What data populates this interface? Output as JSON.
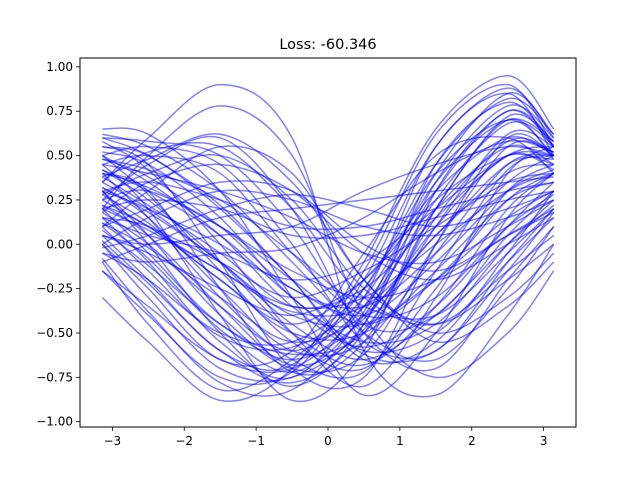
{
  "chart_data": {
    "type": "line",
    "title": "Loss: -60.346",
    "xlabel": "",
    "ylabel": "",
    "xlim": [
      -3.45,
      3.45
    ],
    "ylim": [
      -1.03,
      1.05
    ],
    "xticks": [
      -3,
      -2,
      -1,
      0,
      1,
      2,
      3
    ],
    "xtick_labels": [
      "−3",
      "−2",
      "−1",
      "0",
      "1",
      "2",
      "3"
    ],
    "yticks": [
      -1.0,
      -0.75,
      -0.5,
      -0.25,
      0.0,
      0.25,
      0.5,
      0.75,
      1.0
    ],
    "ytick_labels": [
      "−1.00",
      "−0.75",
      "−0.50",
      "−0.25",
      "0.00",
      "0.25",
      "0.50",
      "0.75",
      "1.00"
    ],
    "grid": false,
    "legend": "none",
    "line_color": "#0000ff",
    "line_opacity": 0.5,
    "x": [
      -3.14,
      -2.5,
      -1.5,
      -0.5,
      0.5,
      1.5,
      2.5,
      3.14
    ],
    "series": [
      {
        "values": [
          0.65,
          0.62,
          0.3,
          -0.3,
          -0.85,
          -0.5,
          0.15,
          0.4
        ]
      },
      {
        "values": [
          0.45,
          0.2,
          -0.4,
          -0.88,
          -0.6,
          0.3,
          0.75,
          0.58
        ]
      },
      {
        "values": [
          0.3,
          0.0,
          -0.5,
          -0.8,
          -0.45,
          0.45,
          0.8,
          0.55
        ]
      },
      {
        "values": [
          0.15,
          -0.1,
          -0.55,
          -0.75,
          -0.3,
          0.55,
          0.85,
          0.5
        ]
      },
      {
        "values": [
          0.55,
          0.45,
          -0.1,
          -0.7,
          -0.75,
          0.0,
          0.6,
          0.5
        ]
      },
      {
        "values": [
          0.4,
          0.3,
          -0.25,
          -0.72,
          -0.55,
          0.2,
          0.7,
          0.48
        ]
      },
      {
        "values": [
          0.05,
          -0.2,
          -0.6,
          -0.68,
          -0.15,
          0.62,
          0.9,
          0.55
        ]
      },
      {
        "values": [
          -0.3,
          -0.55,
          -0.88,
          -0.7,
          -0.1,
          0.65,
          0.95,
          0.65
        ]
      },
      {
        "values": [
          -0.15,
          -0.4,
          -0.75,
          -0.72,
          -0.2,
          0.55,
          0.88,
          0.6
        ]
      },
      {
        "values": [
          0.0,
          -0.25,
          -0.65,
          -0.6,
          -0.05,
          0.5,
          0.6,
          0.4
        ]
      },
      {
        "values": [
          0.35,
          0.6,
          0.9,
          0.6,
          -0.6,
          -0.85,
          -0.4,
          0.0
        ]
      },
      {
        "values": [
          0.2,
          0.5,
          0.78,
          0.5,
          -0.4,
          -0.75,
          -0.5,
          -0.15
        ]
      },
      {
        "values": [
          0.1,
          0.3,
          0.55,
          0.4,
          -0.2,
          -0.5,
          -0.3,
          -0.05
        ]
      },
      {
        "values": [
          0.25,
          0.45,
          0.6,
          0.2,
          -0.5,
          -0.7,
          -0.2,
          0.1
        ]
      },
      {
        "values": [
          0.5,
          0.55,
          0.45,
          0.0,
          -0.55,
          -0.6,
          -0.1,
          0.2
        ]
      },
      {
        "values": [
          0.6,
          0.58,
          0.5,
          0.1,
          -0.45,
          -0.4,
          0.05,
          0.3
        ]
      },
      {
        "values": [
          0.45,
          0.5,
          0.4,
          -0.05,
          -0.4,
          -0.3,
          0.1,
          0.28
        ]
      },
      {
        "values": [
          0.35,
          0.2,
          -0.1,
          -0.4,
          -0.45,
          -0.2,
          0.15,
          0.3
        ]
      },
      {
        "values": [
          0.25,
          0.1,
          -0.15,
          -0.35,
          -0.3,
          0.0,
          0.3,
          0.4
        ]
      },
      {
        "values": [
          0.15,
          0.05,
          -0.05,
          -0.2,
          -0.1,
          0.2,
          0.5,
          0.5
        ]
      },
      {
        "values": [
          0.05,
          0.0,
          0.05,
          0.1,
          0.3,
          0.45,
          0.55,
          0.5
        ]
      },
      {
        "values": [
          -0.05,
          -0.1,
          -0.05,
          -0.02,
          0.15,
          0.4,
          0.58,
          0.52
        ]
      },
      {
        "values": [
          0.3,
          0.35,
          0.25,
          0.1,
          0.1,
          0.2,
          0.3,
          0.35
        ]
      },
      {
        "values": [
          0.2,
          0.25,
          0.2,
          0.05,
          0.05,
          0.15,
          0.25,
          0.3
        ]
      },
      {
        "values": [
          0.42,
          0.3,
          0.05,
          -0.3,
          -0.6,
          -0.5,
          -0.1,
          0.15
        ]
      },
      {
        "values": [
          0.32,
          0.18,
          -0.1,
          -0.45,
          -0.65,
          -0.4,
          0.0,
          0.22
        ]
      },
      {
        "values": [
          0.22,
          0.1,
          -0.2,
          -0.5,
          -0.5,
          -0.15,
          0.25,
          0.35
        ]
      },
      {
        "values": [
          0.12,
          -0.02,
          -0.3,
          -0.55,
          -0.4,
          0.05,
          0.4,
          0.45
        ]
      },
      {
        "values": [
          0.48,
          0.38,
          0.1,
          -0.25,
          -0.35,
          -0.05,
          0.35,
          0.5
        ]
      },
      {
        "values": [
          0.38,
          0.22,
          -0.05,
          -0.35,
          -0.25,
          0.15,
          0.5,
          0.55
        ]
      },
      {
        "values": [
          0.28,
          0.12,
          -0.2,
          -0.45,
          -0.2,
          0.3,
          0.6,
          0.5
        ]
      },
      {
        "values": [
          0.18,
          0.0,
          -0.35,
          -0.6,
          -0.35,
          0.2,
          0.55,
          0.45
        ]
      },
      {
        "values": [
          0.08,
          -0.12,
          -0.45,
          -0.65,
          -0.42,
          0.1,
          0.5,
          0.42
        ]
      },
      {
        "values": [
          0.5,
          0.28,
          -0.15,
          -0.55,
          -0.7,
          -0.25,
          0.3,
          0.45
        ]
      },
      {
        "values": [
          0.4,
          0.15,
          -0.3,
          -0.65,
          -0.72,
          -0.15,
          0.42,
          0.5
        ]
      },
      {
        "values": [
          0.3,
          0.05,
          -0.4,
          -0.7,
          -0.62,
          0.0,
          0.55,
          0.52
        ]
      },
      {
        "values": [
          0.2,
          -0.05,
          -0.45,
          -0.62,
          -0.5,
          0.1,
          0.62,
          0.55
        ]
      },
      {
        "values": [
          0.1,
          -0.15,
          -0.52,
          -0.58,
          -0.3,
          0.35,
          0.7,
          0.58
        ]
      },
      {
        "values": [
          0.0,
          -0.3,
          -0.7,
          -0.75,
          -0.45,
          0.35,
          0.78,
          0.6
        ]
      },
      {
        "values": [
          -0.1,
          -0.45,
          -0.82,
          -0.65,
          -0.25,
          0.45,
          0.82,
          0.62
        ]
      },
      {
        "values": [
          0.55,
          0.5,
          0.2,
          -0.2,
          -0.65,
          -0.55,
          -0.05,
          0.3
        ]
      },
      {
        "values": [
          0.58,
          0.42,
          0.0,
          -0.5,
          -0.8,
          -0.3,
          0.4,
          0.55
        ]
      },
      {
        "values": [
          0.35,
          0.52,
          0.55,
          0.2,
          -0.3,
          -0.45,
          -0.15,
          0.05
        ]
      },
      {
        "values": [
          0.18,
          0.35,
          0.45,
          0.3,
          -0.05,
          -0.2,
          0.0,
          0.15
        ]
      },
      {
        "values": [
          0.0,
          0.15,
          0.3,
          0.25,
          0.1,
          0.05,
          0.15,
          0.25
        ]
      },
      {
        "values": [
          -0.1,
          0.0,
          0.15,
          0.2,
          0.25,
          0.3,
          0.35,
          0.38
        ]
      },
      {
        "values": [
          0.45,
          0.4,
          0.3,
          0.15,
          -0.05,
          -0.1,
          0.1,
          0.25
        ]
      },
      {
        "values": [
          0.25,
          0.3,
          0.1,
          -0.15,
          -0.3,
          -0.2,
          0.05,
          0.2
        ]
      },
      {
        "values": [
          0.15,
          0.1,
          -0.1,
          -0.3,
          -0.15,
          0.1,
          0.35,
          0.4
        ]
      },
      {
        "values": [
          0.05,
          -0.05,
          -0.25,
          -0.4,
          -0.2,
          0.25,
          0.5,
          0.45
        ]
      },
      {
        "values": [
          -0.05,
          -0.2,
          -0.5,
          -0.55,
          -0.25,
          0.4,
          0.7,
          0.5
        ]
      },
      {
        "values": [
          -0.15,
          -0.35,
          -0.65,
          -0.7,
          -0.35,
          0.3,
          0.75,
          0.55
        ]
      },
      {
        "values": [
          0.62,
          0.55,
          0.3,
          -0.1,
          -0.5,
          -0.65,
          -0.25,
          0.1
        ]
      },
      {
        "values": [
          0.52,
          0.45,
          0.15,
          -0.3,
          -0.55,
          -0.45,
          0.0,
          0.25
        ]
      },
      {
        "values": [
          0.42,
          0.25,
          -0.1,
          -0.5,
          -0.68,
          -0.35,
          0.2,
          0.4
        ]
      },
      {
        "values": [
          0.32,
          0.15,
          -0.25,
          -0.6,
          -0.55,
          -0.05,
          0.45,
          0.5
        ]
      },
      {
        "values": [
          0.22,
          0.05,
          -0.35,
          -0.68,
          -0.48,
          0.15,
          0.58,
          0.52
        ]
      },
      {
        "values": [
          0.12,
          -0.08,
          -0.48,
          -0.72,
          -0.4,
          0.25,
          0.68,
          0.56
        ]
      },
      {
        "values": [
          0.02,
          -0.22,
          -0.6,
          -0.78,
          -0.5,
          0.2,
          0.72,
          0.58
        ]
      },
      {
        "values": [
          -0.08,
          -0.38,
          -0.78,
          -0.82,
          -0.38,
          0.4,
          0.85,
          0.62
        ]
      },
      {
        "values": [
          0.38,
          0.48,
          0.62,
          0.35,
          -0.2,
          -0.55,
          -0.35,
          -0.1
        ]
      },
      {
        "values": [
          0.28,
          0.4,
          0.5,
          0.25,
          -0.25,
          -0.45,
          -0.2,
          0.0
        ]
      },
      {
        "values": [
          0.48,
          0.42,
          0.25,
          -0.05,
          -0.35,
          -0.4,
          -0.05,
          0.2
        ]
      },
      {
        "values": [
          0.1,
          0.2,
          0.35,
          0.3,
          0.0,
          -0.15,
          0.05,
          0.18
        ]
      },
      {
        "values": [
          -0.02,
          0.05,
          0.2,
          0.28,
          0.2,
          0.1,
          0.2,
          0.3
        ]
      },
      {
        "values": [
          0.3,
          0.2,
          0.0,
          -0.25,
          -0.4,
          -0.1,
          0.3,
          0.42
        ]
      },
      {
        "values": [
          0.2,
          0.08,
          -0.15,
          -0.38,
          -0.35,
          0.05,
          0.45,
          0.48
        ]
      },
      {
        "values": [
          0.4,
          0.32,
          0.1,
          -0.2,
          -0.45,
          -0.2,
          0.25,
          0.4
        ]
      },
      {
        "values": [
          0.5,
          0.35,
          0.05,
          -0.35,
          -0.58,
          -0.35,
          0.1,
          0.35
        ]
      },
      {
        "values": [
          0.6,
          0.5,
          0.22,
          -0.2,
          -0.62,
          -0.6,
          -0.15,
          0.18
        ]
      }
    ]
  }
}
